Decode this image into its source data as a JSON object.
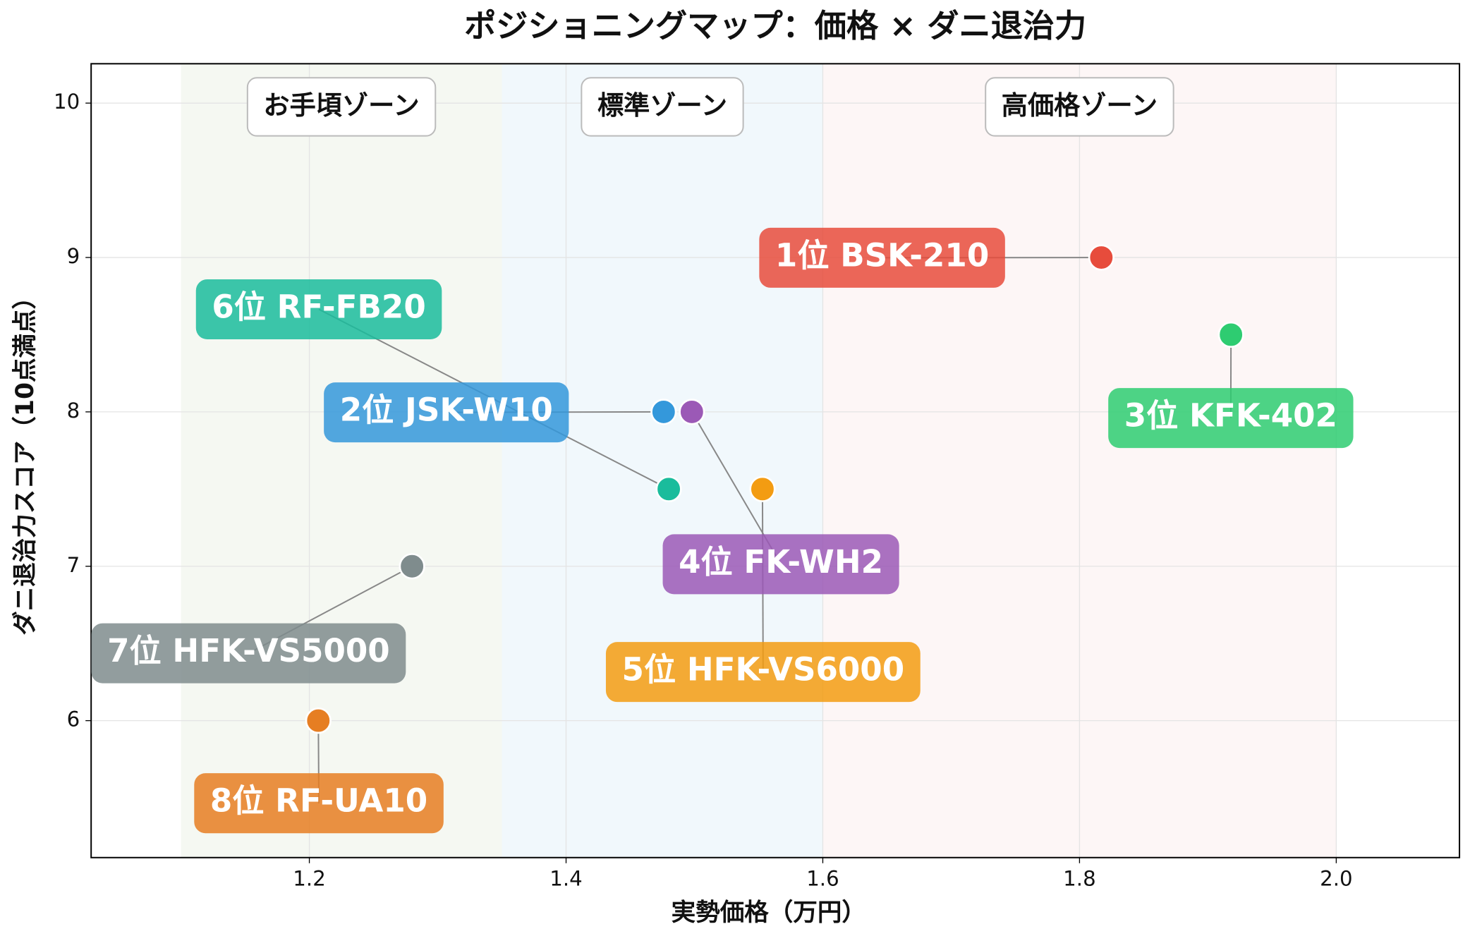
{
  "chart_data": {
    "type": "scatter",
    "title": "ポジショニングマップ：価格 × ダニ退治力",
    "x_label": "実勢価格（万円）",
    "y_label": "ダニ退治力スコア（10点満点）",
    "xlim": [
      1.03,
      2.096
    ],
    "ylim": [
      5.113,
      10.255
    ],
    "xticks": [
      1.2,
      1.4,
      1.6,
      1.8,
      {
        "value": 2.0,
        "label": "2.0"
      }
    ],
    "yticks": [
      6,
      7,
      8,
      9,
      10
    ],
    "grid": true,
    "zones": [
      {
        "label": "お手頃ゾーン",
        "range": [
          1.1,
          1.35
        ],
        "color": "#eef3ea"
      },
      {
        "label": "標準ゾーン",
        "range": [
          1.35,
          1.6
        ],
        "color": "#e8f4fa"
      },
      {
        "label": "高価格ゾーン",
        "range": [
          1.6,
          2.0
        ],
        "color": "#fcf0f0"
      }
    ],
    "points": [
      {
        "label": "1位 BSK-210",
        "x": 1.817,
        "y": 9,
        "color": "#e74c3c"
      },
      {
        "label": "2位 JSK-W10",
        "x": 1.476,
        "y": 8,
        "color": "#3498db"
      },
      {
        "label": "3位 KFK-402",
        "x": 1.918,
        "y": 8.5,
        "color": "#2ecc71"
      },
      {
        "label": "4位 FK-WH2",
        "x": 1.498,
        "y": 8,
        "color": "#9b59b6"
      },
      {
        "label": "5位 HFK-VS6000",
        "x": 1.553,
        "y": 7.5,
        "color": "#f39c12"
      },
      {
        "label": "6位 RF-FB20",
        "x": 1.48,
        "y": 7.5,
        "color": "#1abc9c"
      },
      {
        "label": "7位 HFK-VS5000",
        "x": 1.28,
        "y": 7,
        "color": "#7f8c8d"
      },
      {
        "label": "8位 RF-UA10",
        "x": 1.207,
        "y": 6,
        "color": "#e67e22"
      }
    ]
  }
}
